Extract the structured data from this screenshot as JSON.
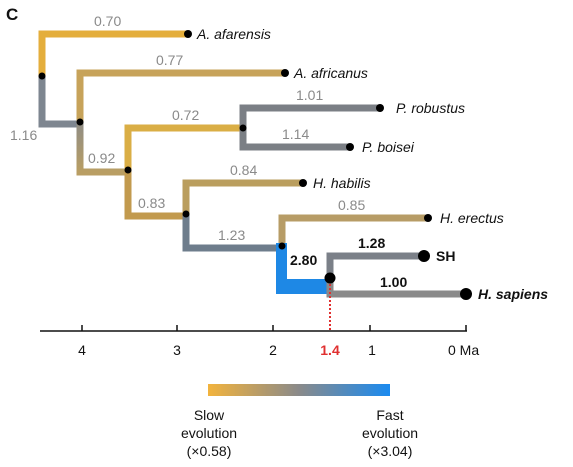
{
  "panel_label": "C",
  "colors": {
    "slow": "#F0B43C",
    "mid": "#888888",
    "fast": "#1E88E5",
    "marker": "#E03030"
  },
  "taxa": {
    "afarensis": "A. afarensis",
    "africanus": "A. africanus",
    "robustus": "P. robustus",
    "boisei": "P. boisei",
    "habilis": "H. habilis",
    "erectus": "H. erectus",
    "sh": "SH",
    "sapiens": "H. sapiens"
  },
  "branch_rates": {
    "afarensis": "0.70",
    "africanus": "0.77",
    "robustus": "1.01",
    "boisei": "1.14",
    "paranthropus_stem": "0.72",
    "habilis": "0.84",
    "erectus": "0.85",
    "stem_1": "1.16",
    "stem_2": "0.92",
    "stem_3": "0.83",
    "stem_4": "1.23",
    "sh_sapiens_stem": "2.80",
    "sh": "1.28",
    "sapiens": "1.00"
  },
  "axis": {
    "ticks": [
      "4",
      "3",
      "2",
      "1",
      "0 Ma"
    ],
    "marker": "1.4"
  },
  "legend": {
    "slow_line1": "Slow",
    "slow_line2": "evolution",
    "slow_line3": "(×0.58)",
    "fast_line1": "Fast",
    "fast_line2": "evolution",
    "fast_line3": "(×3.04)"
  }
}
